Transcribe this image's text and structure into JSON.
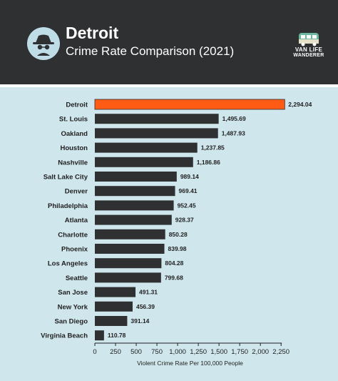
{
  "header": {
    "title": "Detroit",
    "subtitle": "Crime Rate Comparison (2021)",
    "logo_line1": "VAN LIFE",
    "logo_line2": "WANDERER",
    "icon": "spy-icon"
  },
  "colors": {
    "header_bg": "#2f3032",
    "chart_bg": "#cfe6ec",
    "highlight_bar": "#ff5b14",
    "default_bar": "#2f3032",
    "icon_circle": "#bfdde6"
  },
  "chart_data": {
    "type": "bar",
    "orientation": "horizontal",
    "categories": [
      "Detroit",
      "St. Louis",
      "Oakland",
      "Houston",
      "Nashville",
      "Salt Lake City",
      "Denver",
      "Philadelphia",
      "Atlanta",
      "Charlotte",
      "Phoenix",
      "Los Angeles",
      "Seattle",
      "San Jose",
      "New York",
      "San Diego",
      "Virginia Beach"
    ],
    "values": [
      2294.04,
      1495.69,
      1487.93,
      1237.85,
      1186.86,
      989.14,
      969.41,
      952.45,
      928.37,
      850.28,
      839.98,
      804.28,
      799.68,
      491.31,
      456.39,
      391.14,
      110.78
    ],
    "value_labels": [
      "2,294.04",
      "1,495.69",
      "1,487.93",
      "1,237.85",
      "1,186.86",
      "989.14",
      "969.41",
      "952.45",
      "928.37",
      "850.28",
      "839.98",
      "804.28",
      "799.68",
      "491.31",
      "456.39",
      "391.14",
      "110.78"
    ],
    "highlight": "Detroit",
    "xlabel": "Violent Crime Rate Per 100,000 People",
    "ylabel": "",
    "xlim": [
      0,
      2300
    ],
    "xticks": [
      0,
      250,
      500,
      750,
      1000,
      1250,
      1500,
      1750,
      2000,
      2250
    ],
    "xtick_labels": [
      "0",
      "250",
      "500",
      "750",
      "1,000",
      "1,250",
      "1,500",
      "1,750",
      "2,000",
      "2,250"
    ],
    "grid": false,
    "legend": "none"
  }
}
